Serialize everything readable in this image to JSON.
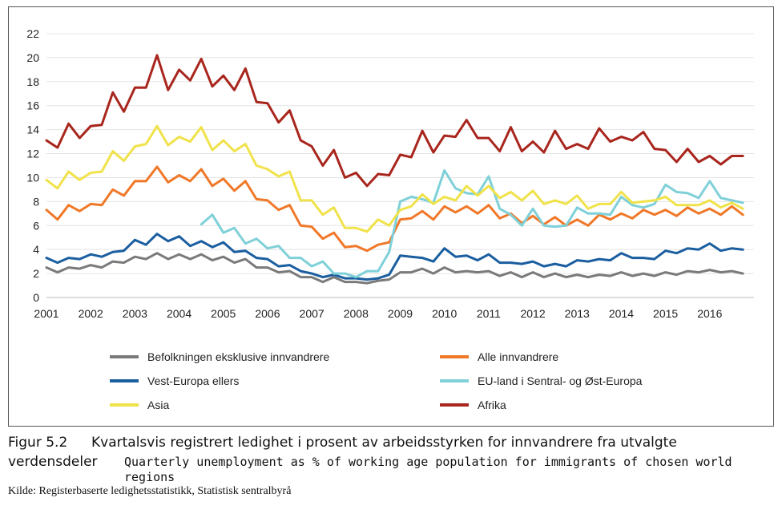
{
  "chart_data": {
    "type": "line",
    "x": [
      2001.0,
      2001.25,
      2001.5,
      2001.75,
      2002.0,
      2002.25,
      2002.5,
      2002.75,
      2003.0,
      2003.25,
      2003.5,
      2003.75,
      2004.0,
      2004.25,
      2004.5,
      2004.75,
      2005.0,
      2005.25,
      2005.5,
      2005.75,
      2006.0,
      2006.25,
      2006.5,
      2006.75,
      2007.0,
      2007.25,
      2007.5,
      2007.75,
      2008.0,
      2008.25,
      2008.5,
      2008.75,
      2009.0,
      2009.25,
      2009.5,
      2009.75,
      2010.0,
      2010.25,
      2010.5,
      2010.75,
      2011.0,
      2011.25,
      2011.5,
      2011.75,
      2012.0,
      2012.25,
      2012.5,
      2012.75,
      2013.0,
      2013.25,
      2013.5,
      2013.75,
      2014.0,
      2014.25,
      2014.5,
      2014.75,
      2015.0,
      2015.25,
      2015.5,
      2015.75,
      2016.0,
      2016.25,
      2016.5,
      2016.75
    ],
    "xticks": [
      "2001",
      "2002",
      "2003",
      "2004",
      "2005",
      "2006",
      "2007",
      "2008",
      "2009",
      "2010",
      "2011",
      "2012",
      "2013",
      "2014",
      "2015",
      "2016"
    ],
    "xlim": [
      2001,
      2017
    ],
    "ylim": [
      0,
      22
    ],
    "yticks": [
      "0",
      "2",
      "4",
      "6",
      "8",
      "10",
      "12",
      "14",
      "16",
      "18",
      "20",
      "22"
    ],
    "grid": true,
    "legend_position": "bottom",
    "series": [
      {
        "name": "Befolkningen eksklusive innvandrere",
        "color": "#7a7a7a",
        "values": [
          2.5,
          2.1,
          2.5,
          2.4,
          2.7,
          2.5,
          3.0,
          2.9,
          3.4,
          3.2,
          3.7,
          3.2,
          3.6,
          3.2,
          3.6,
          3.1,
          3.4,
          2.9,
          3.2,
          2.5,
          2.5,
          2.1,
          2.2,
          1.7,
          1.7,
          1.3,
          1.7,
          1.3,
          1.3,
          1.2,
          1.4,
          1.5,
          2.1,
          2.1,
          2.4,
          2.0,
          2.5,
          2.1,
          2.2,
          2.1,
          2.2,
          1.8,
          2.1,
          1.7,
          2.1,
          1.7,
          2.0,
          1.7,
          1.9,
          1.7,
          1.9,
          1.8,
          2.1,
          1.8,
          2.0,
          1.8,
          2.1,
          1.9,
          2.2,
          2.1,
          2.3,
          2.1,
          2.2,
          2.0
        ]
      },
      {
        "name": "Alle innvandrere",
        "color": "#f07828",
        "values": [
          7.3,
          6.5,
          7.7,
          7.2,
          7.8,
          7.7,
          9.0,
          8.5,
          9.7,
          9.7,
          10.9,
          9.6,
          10.2,
          9.7,
          10.7,
          9.3,
          9.9,
          8.9,
          9.7,
          8.2,
          8.1,
          7.3,
          7.7,
          6.0,
          5.9,
          4.9,
          5.4,
          4.2,
          4.3,
          3.9,
          4.4,
          4.6,
          6.5,
          6.6,
          7.2,
          6.5,
          7.6,
          7.1,
          7.6,
          7.0,
          7.7,
          6.6,
          7.0,
          6.2,
          6.8,
          6.1,
          6.7,
          6.0,
          6.5,
          6.0,
          6.9,
          6.5,
          7.0,
          6.6,
          7.3,
          6.9,
          7.3,
          6.8,
          7.5,
          7.0,
          7.4,
          6.9,
          7.6,
          6.9
        ]
      },
      {
        "name": "Vest-Europa ellers",
        "color": "#1a5ea0",
        "values": [
          3.3,
          2.9,
          3.3,
          3.2,
          3.6,
          3.4,
          3.8,
          3.9,
          4.8,
          4.4,
          5.3,
          4.7,
          5.1,
          4.3,
          4.7,
          4.2,
          4.6,
          3.8,
          3.9,
          3.3,
          3.2,
          2.6,
          2.7,
          2.2,
          2.0,
          1.7,
          1.9,
          1.6,
          1.6,
          1.5,
          1.6,
          1.9,
          3.5,
          3.4,
          3.3,
          3.0,
          4.1,
          3.4,
          3.5,
          3.1,
          3.6,
          2.9,
          2.9,
          2.8,
          3.0,
          2.6,
          2.8,
          2.6,
          3.1,
          3.0,
          3.2,
          3.1,
          3.7,
          3.3,
          3.3,
          3.2,
          3.9,
          3.7,
          4.1,
          4.0,
          4.5,
          3.9,
          4.1,
          4.0
        ]
      },
      {
        "name": "EU-land i Sentral- og Øst-Europa",
        "color": "#7fd0d8",
        "values": [
          null,
          null,
          null,
          null,
          null,
          null,
          null,
          null,
          null,
          null,
          null,
          null,
          null,
          null,
          6.1,
          6.9,
          5.4,
          5.8,
          4.5,
          4.9,
          4.1,
          4.3,
          3.3,
          3.3,
          2.6,
          3.0,
          2.0,
          2.0,
          1.7,
          2.2,
          2.2,
          3.8,
          8.0,
          8.4,
          8.2,
          7.9,
          10.6,
          9.1,
          8.7,
          8.6,
          10.1,
          7.4,
          6.9,
          6.0,
          7.4,
          6.0,
          5.9,
          6.0,
          7.5,
          7.0,
          7.0,
          6.9,
          8.4,
          7.7,
          7.5,
          7.8,
          9.4,
          8.8,
          8.7,
          8.3,
          9.7,
          8.3,
          8.1,
          7.9
        ]
      },
      {
        "name": "Asia",
        "color": "#f0e24a",
        "values": [
          9.8,
          9.1,
          10.5,
          9.8,
          10.4,
          10.5,
          12.2,
          11.4,
          12.6,
          12.8,
          14.3,
          12.7,
          13.4,
          13.0,
          14.2,
          12.3,
          13.1,
          12.2,
          12.8,
          11.0,
          10.7,
          10.1,
          10.5,
          8.1,
          8.1,
          6.9,
          7.5,
          5.8,
          5.8,
          5.5,
          6.5,
          6.0,
          7.3,
          7.6,
          8.6,
          7.8,
          8.4,
          8.1,
          9.3,
          8.5,
          9.3,
          8.3,
          8.8,
          8.1,
          8.9,
          7.8,
          8.1,
          7.8,
          8.5,
          7.4,
          7.8,
          7.8,
          8.8,
          7.9,
          8.0,
          8.1,
          8.4,
          7.7,
          7.7,
          7.7,
          8.1,
          7.5,
          7.9,
          7.4
        ]
      },
      {
        "name": "Afrika",
        "color": "#a8261d",
        "values": [
          13.1,
          12.5,
          14.5,
          13.3,
          14.3,
          14.4,
          17.1,
          15.5,
          17.5,
          17.5,
          20.2,
          17.3,
          19.0,
          18.1,
          19.9,
          17.6,
          18.5,
          17.3,
          19.1,
          16.3,
          16.2,
          14.6,
          15.6,
          13.1,
          12.6,
          11.0,
          12.3,
          10.0,
          10.4,
          9.3,
          10.3,
          10.2,
          11.9,
          11.7,
          13.9,
          12.1,
          13.5,
          13.4,
          14.8,
          13.3,
          13.3,
          12.2,
          14.2,
          12.2,
          13.0,
          12.1,
          13.9,
          12.4,
          12.8,
          12.4,
          14.1,
          13.0,
          13.4,
          13.1,
          13.8,
          12.4,
          12.3,
          11.3,
          12.4,
          11.3,
          11.8,
          11.1,
          11.8,
          11.8
        ]
      }
    ]
  },
  "caption": {
    "figure_number": "Figur 5.2",
    "title_line1": "Kvartalsvis registrert ledighet i prosent av arbeidsstyrken for innvandrere fra utvalgte",
    "title_line2": "verdensdeler",
    "translation": "Quarterly unemployment as % of working age population for immigrants of chosen world regions",
    "source": "Kilde: Registerbaserte ledighetsstatistikk, Statistisk sentralbyrå"
  }
}
